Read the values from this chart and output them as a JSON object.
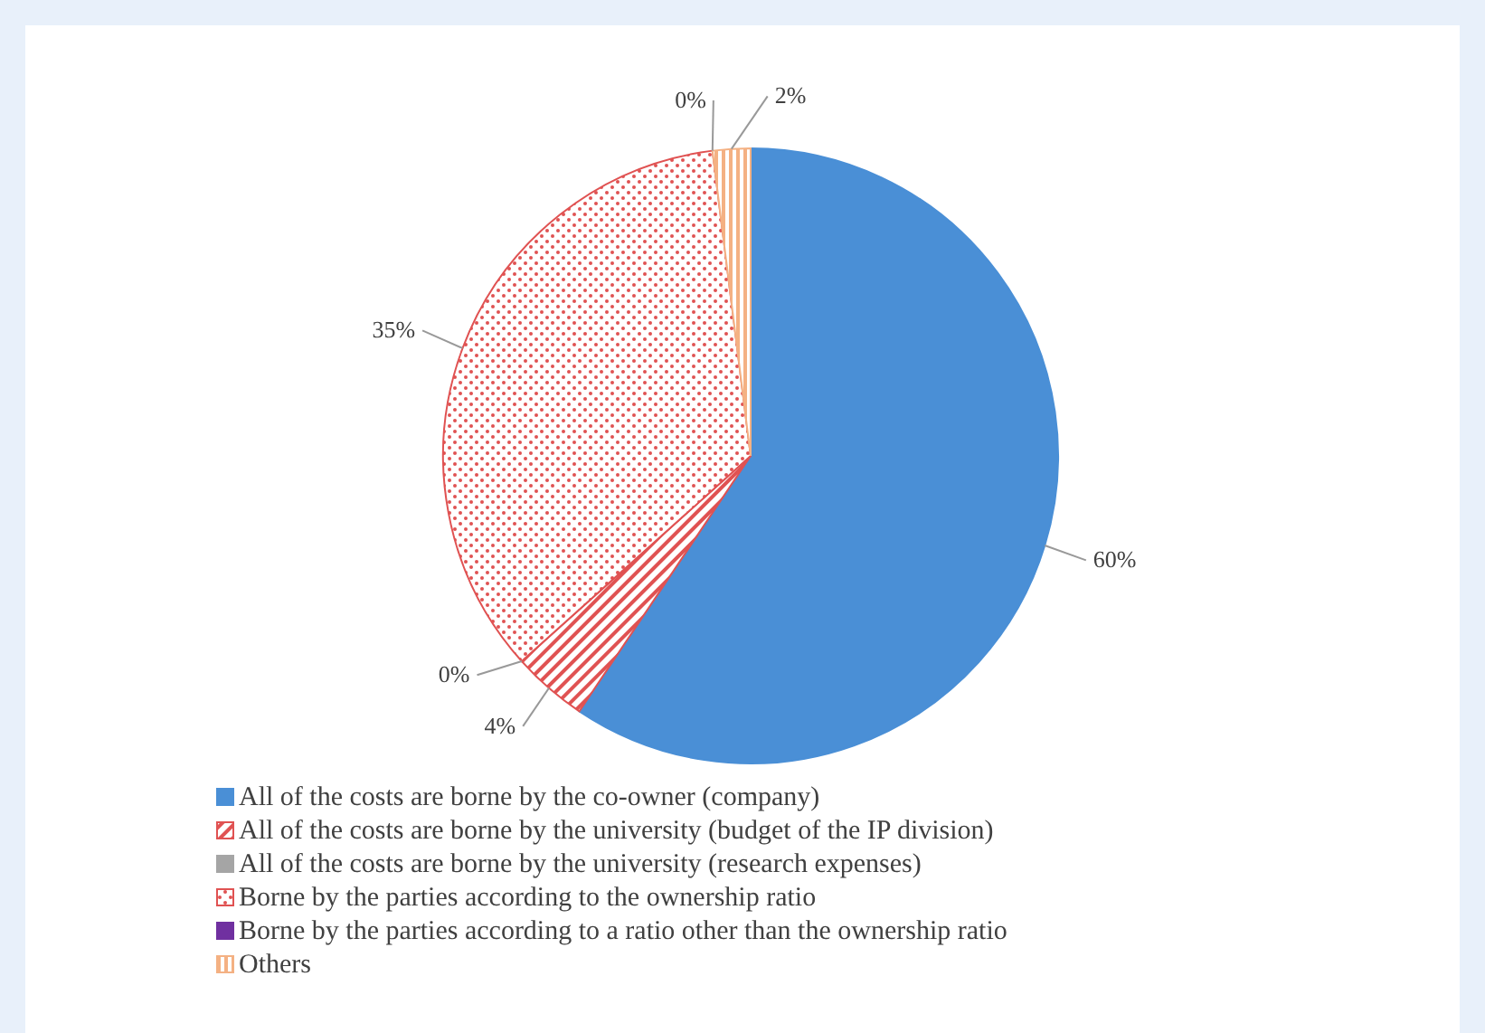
{
  "chart_data": {
    "type": "pie",
    "categories": [
      "All of the costs are borne by the co-owner (company)",
      "All of the costs are borne by the university (budget of the IP division)",
      "All of the costs are borne by the university (research expenses)",
      "Borne by the parties according to the ownership ratio",
      "Borne by the parties according to a ratio other than the ownership ratio",
      "Others"
    ],
    "values": [
      60,
      4,
      0,
      35,
      0,
      2
    ],
    "colors": [
      "#4a8fd6",
      "#e05252",
      "#a5a5a5",
      "#e05252",
      "#7030a0",
      "#f4b183"
    ],
    "value_labels": [
      "60%",
      "4%",
      "0%",
      "35%",
      "0%",
      "2%"
    ],
    "legend": "bottom"
  }
}
